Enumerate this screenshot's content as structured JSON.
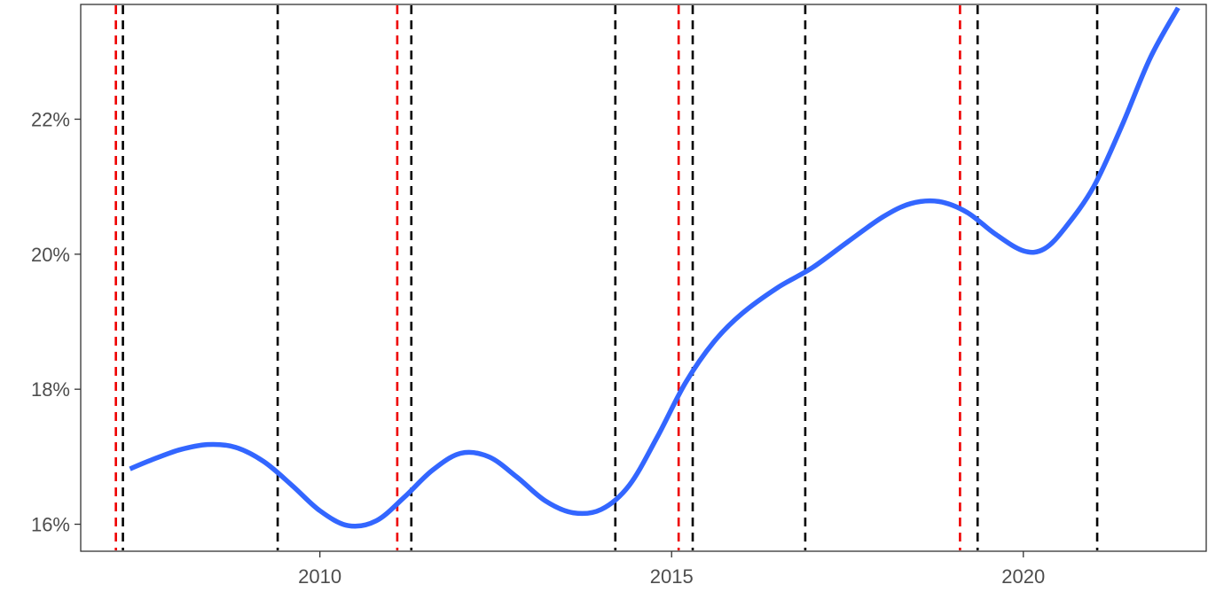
{
  "chart_data": {
    "type": "line",
    "title": "",
    "xlabel": "",
    "ylabel": "",
    "xlim": [
      2006.6,
      2022.6
    ],
    "ylim": [
      15.6,
      23.7
    ],
    "x_ticks": [
      {
        "value": 2010,
        "label": "2010"
      },
      {
        "value": 2015,
        "label": "2015"
      },
      {
        "value": 2020,
        "label": "2020"
      }
    ],
    "y_ticks": [
      {
        "value": 16,
        "label": "16%"
      },
      {
        "value": 18,
        "label": "18%"
      },
      {
        "value": 20,
        "label": "20%"
      },
      {
        "value": 22,
        "label": "22%"
      }
    ],
    "grid": false,
    "legend": "none",
    "series": [
      {
        "color": "#3366ff",
        "points": [
          [
            2007.3,
            16.82
          ],
          [
            2007.6,
            16.95
          ],
          [
            2008.0,
            17.1
          ],
          [
            2008.4,
            17.18
          ],
          [
            2008.8,
            17.14
          ],
          [
            2009.2,
            16.93
          ],
          [
            2009.6,
            16.58
          ],
          [
            2010.0,
            16.2
          ],
          [
            2010.4,
            15.98
          ],
          [
            2010.8,
            16.05
          ],
          [
            2011.2,
            16.4
          ],
          [
            2011.6,
            16.8
          ],
          [
            2012.0,
            17.05
          ],
          [
            2012.4,
            17.0
          ],
          [
            2012.8,
            16.7
          ],
          [
            2013.2,
            16.35
          ],
          [
            2013.6,
            16.17
          ],
          [
            2014.0,
            16.22
          ],
          [
            2014.4,
            16.58
          ],
          [
            2014.8,
            17.3
          ],
          [
            2015.2,
            18.1
          ],
          [
            2015.6,
            18.7
          ],
          [
            2016.0,
            19.12
          ],
          [
            2016.5,
            19.5
          ],
          [
            2017.0,
            19.8
          ],
          [
            2017.5,
            20.18
          ],
          [
            2018.0,
            20.55
          ],
          [
            2018.4,
            20.75
          ],
          [
            2018.8,
            20.78
          ],
          [
            2019.2,
            20.62
          ],
          [
            2019.6,
            20.3
          ],
          [
            2020.0,
            20.05
          ],
          [
            2020.3,
            20.08
          ],
          [
            2020.6,
            20.4
          ],
          [
            2021.0,
            21.0
          ],
          [
            2021.4,
            21.9
          ],
          [
            2021.8,
            22.9
          ],
          [
            2022.2,
            23.65
          ]
        ]
      }
    ],
    "vertical_lines": {
      "black_dashed": [
        2007.2,
        2009.4,
        2011.3,
        2014.2,
        2015.3,
        2016.9,
        2019.35,
        2021.05
      ],
      "red_dashed": [
        2007.1,
        2011.1,
        2015.1,
        2019.1
      ],
      "black_color": "#000000",
      "red_color": "#ee0000"
    }
  }
}
